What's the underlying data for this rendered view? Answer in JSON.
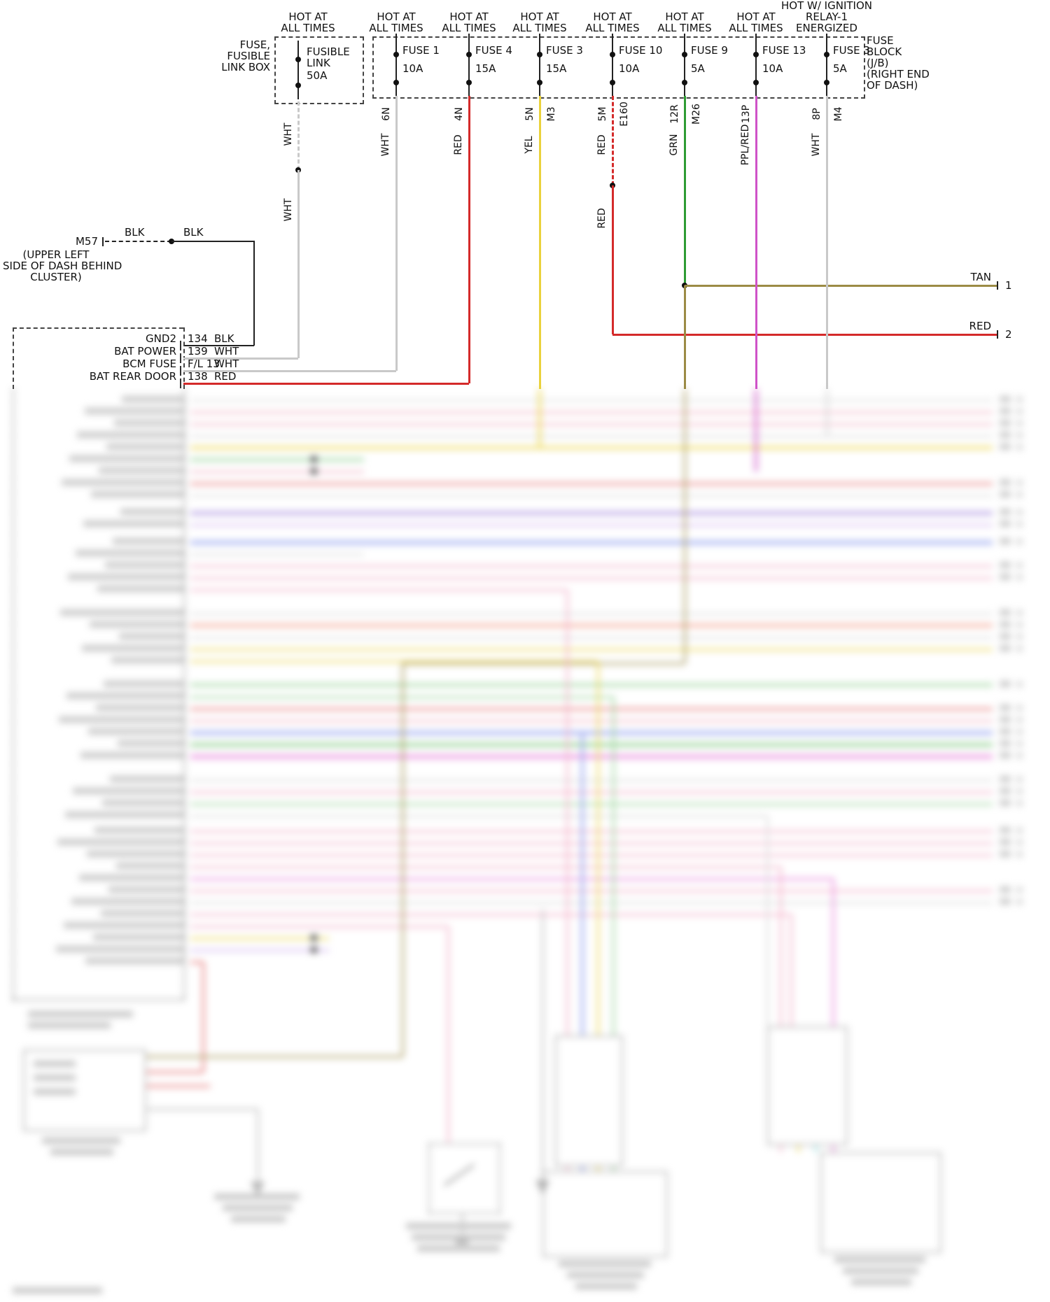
{
  "fusible_link": {
    "header": "HOT AT\nALL TIMES",
    "box_label": "FUSE,\nFUSIBLE\nLINK BOX",
    "name": "FUSIBLE\nLINK",
    "rating": "50A",
    "wire_label_1": "WHT",
    "wire_label_2": "WHT"
  },
  "fuse_block": {
    "label": "FUSE\nBLOCK\n(J/B)\n(RIGHT END\nOF DASH)",
    "fuses": [
      {
        "header": "HOT AT\nALL TIMES",
        "name": "FUSE 1",
        "rating": "10A",
        "pin": "6N",
        "connector": "",
        "wire": "WHT",
        "color": "#c9c9c9"
      },
      {
        "header": "HOT AT\nALL TIMES",
        "name": "FUSE 4",
        "rating": "15A",
        "pin": "4N",
        "connector": "",
        "wire": "RED",
        "color": "#d42a2a"
      },
      {
        "header": "HOT AT\nALL TIMES",
        "name": "FUSE 3",
        "rating": "15A",
        "pin": "5N",
        "connector": "M3",
        "wire": "YEL",
        "color": "#ead23c"
      },
      {
        "header": "HOT AT\nALL TIMES",
        "name": "FUSE 10",
        "rating": "10A",
        "pin": "5M",
        "connector": "E160",
        "wire": "RED",
        "wire2": "RED",
        "color": "#d42a2a"
      },
      {
        "header": "HOT AT\nALL TIMES",
        "name": "FUSE 9",
        "rating": "5A",
        "pin": "12R",
        "connector": "M26",
        "wire": "GRN",
        "color": "#2e9b33"
      },
      {
        "header": "HOT AT\nALL TIMES",
        "name": "FUSE 13",
        "rating": "10A",
        "pin": "13P",
        "connector": "",
        "wire": "PPL/RED",
        "color": "#cf52c8"
      },
      {
        "header": "HOT W/ IGNITION\nRELAY-1\nENERGIZED",
        "name": "FUSE 3",
        "rating": "5A",
        "pin": "8P",
        "connector": "M4",
        "wire": "WHT",
        "color": "#c9c9c9"
      }
    ]
  },
  "m57": {
    "name": "M57",
    "location": "(UPPER LEFT\nSIDE OF DASH BEHIND\nCLUSTER)",
    "wire_label_1": "BLK",
    "wire_label_2": "BLK"
  },
  "bcm_connector": {
    "pins": [
      {
        "name": "GND2",
        "pin": "134",
        "wire": "BLK"
      },
      {
        "name": "BAT POWER",
        "pin": "139",
        "wire": "WHT"
      },
      {
        "name": "BCM FUSE",
        "pin": "F/L 13",
        "wire": "WHT"
      },
      {
        "name": "BAT REAR DOOR",
        "pin": "138",
        "wire": "RED"
      }
    ]
  },
  "right_terminals": [
    {
      "wire": "TAN",
      "terminal": "1",
      "color": "#9b8b45"
    },
    {
      "wire": "RED",
      "terminal": "2",
      "color": "#d42a2a"
    }
  ],
  "wire_palette": {
    "WHT": "#c9c9c9",
    "RED": "#d42a2a",
    "YEL": "#ead23c",
    "GRN": "#2e9b33",
    "PPL/RED": "#cf52c8",
    "TAN": "#9b8b45",
    "BLK": "#222222"
  }
}
